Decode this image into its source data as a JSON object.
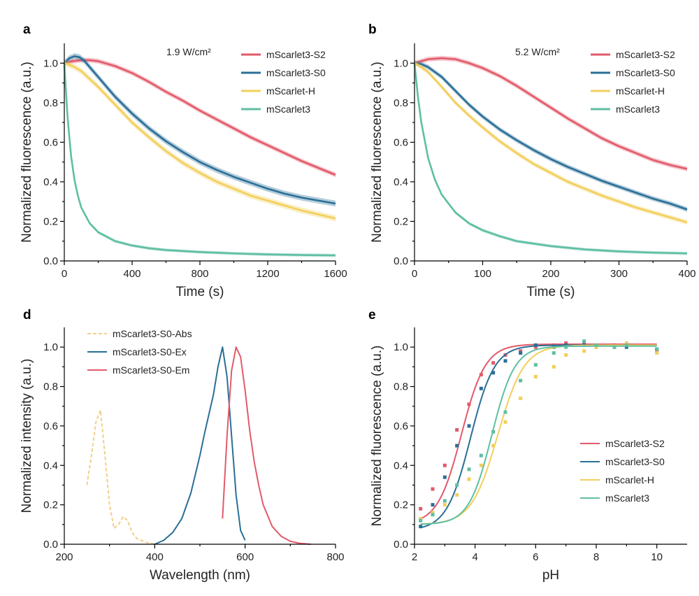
{
  "chart_data": [
    {
      "panel": "a",
      "type": "line",
      "annotation": "1.9 W/cm²",
      "xlabel": "Time (s)",
      "ylabel": "Normalized fluorescence (a.u.)",
      "xlim": [
        0,
        1600
      ],
      "ylim": [
        0,
        1.1
      ],
      "xticks": [
        0,
        400,
        800,
        1200,
        1600
      ],
      "yticks": [
        0.0,
        0.2,
        0.4,
        0.6,
        0.8,
        1.0
      ],
      "legend_position": "top-right",
      "series": [
        {
          "name": "mScarlet3-S2",
          "color": "#e25a6a",
          "band": 0.012,
          "x": [
            0,
            50,
            100,
            150,
            200,
            300,
            400,
            500,
            600,
            700,
            800,
            900,
            1000,
            1100,
            1200,
            1300,
            1400,
            1500,
            1600
          ],
          "y": [
            1.0,
            1.01,
            1.015,
            1.015,
            1.01,
            0.985,
            0.95,
            0.905,
            0.855,
            0.81,
            0.76,
            0.715,
            0.67,
            0.625,
            0.585,
            0.545,
            0.505,
            0.47,
            0.435
          ]
        },
        {
          "name": "mScarlet3-S0",
          "color": "#2a6f97",
          "band": 0.015,
          "x": [
            0,
            30,
            60,
            90,
            120,
            200,
            300,
            400,
            500,
            600,
            700,
            800,
            900,
            1000,
            1100,
            1200,
            1300,
            1400,
            1500,
            1600
          ],
          "y": [
            1.0,
            1.025,
            1.035,
            1.03,
            1.01,
            0.93,
            0.83,
            0.745,
            0.67,
            0.605,
            0.55,
            0.5,
            0.46,
            0.425,
            0.395,
            0.365,
            0.34,
            0.32,
            0.305,
            0.29
          ]
        },
        {
          "name": "mScarlet-H",
          "color": "#f2cf5b",
          "band": 0.015,
          "x": [
            0,
            50,
            100,
            200,
            300,
            400,
            500,
            600,
            700,
            800,
            900,
            1000,
            1100,
            1200,
            1300,
            1400,
            1500,
            1600
          ],
          "y": [
            1.0,
            0.985,
            0.96,
            0.88,
            0.79,
            0.7,
            0.625,
            0.555,
            0.495,
            0.445,
            0.4,
            0.365,
            0.33,
            0.305,
            0.28,
            0.255,
            0.235,
            0.215
          ]
        },
        {
          "name": "mScarlet3",
          "color": "#5fbfa3",
          "band": 0.008,
          "x": [
            0,
            10,
            20,
            40,
            60,
            80,
            100,
            150,
            200,
            300,
            400,
            500,
            600,
            800,
            1000,
            1200,
            1400,
            1600
          ],
          "y": [
            1.0,
            0.85,
            0.72,
            0.53,
            0.41,
            0.33,
            0.27,
            0.19,
            0.145,
            0.1,
            0.078,
            0.064,
            0.055,
            0.045,
            0.038,
            0.033,
            0.03,
            0.028
          ]
        }
      ]
    },
    {
      "panel": "b",
      "type": "line",
      "annotation": "5.2 W/cm²",
      "xlabel": "Time (s)",
      "ylabel": "Normalized fluorescence (a.u.)",
      "xlim": [
        0,
        400
      ],
      "ylim": [
        0,
        1.1
      ],
      "xticks": [
        0,
        100,
        200,
        300,
        400
      ],
      "yticks": [
        0.0,
        0.2,
        0.4,
        0.6,
        0.8,
        1.0
      ],
      "legend_position": "top-right",
      "series": [
        {
          "name": "mScarlet3-S2",
          "color": "#e25a6a",
          "band": 0.012,
          "x": [
            0,
            20,
            40,
            60,
            80,
            100,
            125,
            150,
            175,
            200,
            225,
            250,
            275,
            300,
            325,
            350,
            375,
            400
          ],
          "y": [
            1.0,
            1.02,
            1.025,
            1.02,
            1.0,
            0.975,
            0.935,
            0.885,
            0.83,
            0.775,
            0.72,
            0.67,
            0.62,
            0.58,
            0.545,
            0.51,
            0.485,
            0.465
          ]
        },
        {
          "name": "mScarlet3-S0",
          "color": "#2a6f97",
          "band": 0.012,
          "x": [
            0,
            10,
            20,
            30,
            40,
            60,
            80,
            100,
            125,
            150,
            175,
            200,
            225,
            250,
            275,
            300,
            325,
            350,
            375,
            400
          ],
          "y": [
            1.0,
            0.995,
            0.98,
            0.955,
            0.93,
            0.86,
            0.79,
            0.73,
            0.665,
            0.61,
            0.56,
            0.515,
            0.475,
            0.44,
            0.405,
            0.375,
            0.345,
            0.315,
            0.29,
            0.26
          ]
        },
        {
          "name": "mScarlet-H",
          "color": "#f2cf5b",
          "band": 0.012,
          "x": [
            0,
            10,
            20,
            40,
            60,
            80,
            100,
            125,
            150,
            175,
            200,
            225,
            250,
            275,
            300,
            325,
            350,
            375,
            400
          ],
          "y": [
            1.0,
            0.98,
            0.955,
            0.88,
            0.8,
            0.735,
            0.675,
            0.605,
            0.545,
            0.49,
            0.445,
            0.4,
            0.365,
            0.33,
            0.3,
            0.27,
            0.245,
            0.22,
            0.195
          ]
        },
        {
          "name": "mScarlet3",
          "color": "#5fbfa3",
          "band": 0.008,
          "x": [
            0,
            5,
            10,
            20,
            30,
            40,
            60,
            80,
            100,
            125,
            150,
            200,
            250,
            300,
            350,
            400
          ],
          "y": [
            1.0,
            0.83,
            0.7,
            0.52,
            0.41,
            0.335,
            0.245,
            0.19,
            0.155,
            0.125,
            0.1,
            0.075,
            0.058,
            0.048,
            0.042,
            0.038
          ]
        }
      ]
    },
    {
      "panel": "d",
      "type": "line",
      "xlabel": "Wavelength (nm)",
      "ylabel": "Normalized intensity (a.u.)",
      "xlim": [
        200,
        800
      ],
      "ylim": [
        0,
        1.1
      ],
      "xticks": [
        200,
        400,
        600,
        800
      ],
      "yticks": [
        0.0,
        0.2,
        0.4,
        0.6,
        0.8,
        1.0
      ],
      "legend_position": "top-left",
      "series": [
        {
          "name": "mScarlet3-S0-Abs",
          "color": "#f2cf8a",
          "dashed": true,
          "x": [
            250,
            260,
            270,
            280,
            290,
            300,
            310,
            320,
            330,
            340,
            350,
            360,
            380,
            400
          ],
          "y": [
            0.3,
            0.45,
            0.62,
            0.68,
            0.45,
            0.2,
            0.08,
            0.1,
            0.14,
            0.12,
            0.06,
            0.03,
            0.01,
            0.0
          ]
        },
        {
          "name": "mScarlet3-S0-Ex",
          "color": "#2a6f97",
          "x": [
            400,
            420,
            440,
            460,
            480,
            500,
            510,
            520,
            530,
            540,
            550,
            560,
            570,
            580,
            590,
            600
          ],
          "y": [
            0.0,
            0.02,
            0.06,
            0.13,
            0.26,
            0.45,
            0.56,
            0.66,
            0.76,
            0.9,
            1.0,
            0.85,
            0.55,
            0.25,
            0.07,
            0.02
          ]
        },
        {
          "name": "mScarlet3-S0-Em",
          "color": "#e25a6a",
          "x": [
            550,
            560,
            570,
            580,
            590,
            600,
            610,
            620,
            630,
            640,
            660,
            680,
            700,
            720,
            745
          ],
          "y": [
            0.13,
            0.55,
            0.88,
            1.0,
            0.95,
            0.78,
            0.58,
            0.42,
            0.3,
            0.2,
            0.09,
            0.04,
            0.015,
            0.005,
            0.0
          ]
        }
      ]
    },
    {
      "panel": "e",
      "type": "scatter",
      "xlabel": "pH",
      "ylabel": "Normalized fluorescence (a.u.)",
      "xlim": [
        2,
        11
      ],
      "ylim": [
        0,
        1.1
      ],
      "xticks": [
        2,
        4,
        6,
        8,
        10
      ],
      "yticks": [
        0.0,
        0.2,
        0.4,
        0.6,
        0.8,
        1.0
      ],
      "legend_position": "center-right",
      "series": [
        {
          "name": "mScarlet3-S2",
          "color": "#e25a6a",
          "fit": {
            "min": 0.1,
            "max": 1.015,
            "pKa": 3.55,
            "n": 1.1
          },
          "x": [
            2.2,
            2.6,
            3.0,
            3.4,
            3.8,
            4.2,
            4.6,
            5.0,
            5.5,
            6.0,
            6.6,
            7.0,
            7.6,
            8.0,
            8.6,
            9.0,
            10.0
          ],
          "y": [
            0.18,
            0.28,
            0.4,
            0.58,
            0.71,
            0.86,
            0.92,
            0.96,
            0.98,
            1.0,
            1.01,
            1.02,
            1.02,
            1.01,
            1.01,
            1.01,
            0.98
          ]
        },
        {
          "name": "mScarlet3-S0",
          "color": "#2a6f97",
          "fit": {
            "min": 0.07,
            "max": 1.01,
            "pKa": 3.85,
            "n": 1.1
          },
          "x": [
            2.2,
            2.6,
            3.0,
            3.4,
            3.8,
            4.2,
            4.6,
            5.0,
            5.5,
            6.0,
            6.6,
            7.0,
            7.6,
            8.0,
            8.6,
            9.0,
            10.0
          ],
          "y": [
            0.09,
            0.2,
            0.34,
            0.5,
            0.6,
            0.79,
            0.87,
            0.93,
            0.97,
            1.01,
            1.0,
            1.01,
            1.01,
            1.0,
            1.0,
            1.0,
            0.99
          ]
        },
        {
          "name": "mScarlet-H",
          "color": "#f2cf5b",
          "fit": {
            "min": 0.1,
            "max": 1.01,
            "pKa": 4.75,
            "n": 1.0
          },
          "x": [
            2.2,
            2.6,
            3.0,
            3.4,
            3.8,
            4.2,
            4.6,
            5.0,
            5.5,
            6.0,
            6.6,
            7.0,
            7.6,
            8.0,
            8.6,
            9.0,
            10.0
          ],
          "y": [
            0.13,
            0.16,
            0.2,
            0.25,
            0.33,
            0.4,
            0.5,
            0.62,
            0.74,
            0.85,
            0.9,
            0.96,
            0.98,
            1.0,
            1.0,
            1.02,
            0.97
          ]
        },
        {
          "name": "mScarlet3",
          "color": "#5fbfa3",
          "fit": {
            "min": 0.1,
            "max": 1.005,
            "pKa": 4.55,
            "n": 1.15
          },
          "x": [
            2.2,
            2.6,
            3.0,
            3.4,
            3.8,
            4.2,
            4.6,
            5.0,
            5.5,
            6.0,
            6.6,
            7.0,
            7.6,
            8.0,
            8.6,
            9.0,
            10.0
          ],
          "y": [
            0.12,
            0.15,
            0.22,
            0.3,
            0.38,
            0.45,
            0.57,
            0.67,
            0.83,
            0.91,
            0.97,
            1.0,
            1.03,
            1.01,
            1.0,
            1.01,
            0.99
          ]
        }
      ]
    }
  ]
}
